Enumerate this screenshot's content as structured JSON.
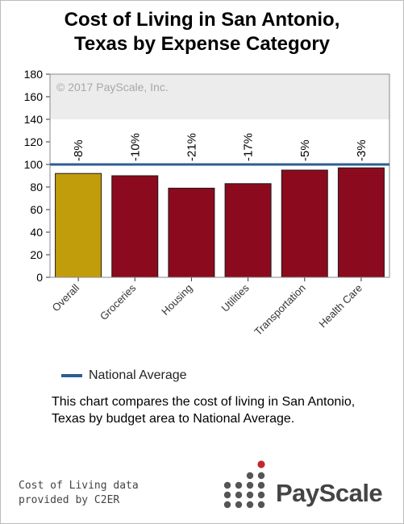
{
  "title_line1": "Cost of Living in San Antonio,",
  "title_line2": "Texas by Expense Category",
  "watermark": "© 2017 PayScale, Inc.",
  "legend_label": "National Average",
  "description": "This chart compares the cost of living in San Antonio, Texas by budget area to National Average.",
  "credit_line1": "Cost of Living data",
  "credit_line2": "provided by C2ER",
  "brand": "PayScale",
  "colors": {
    "overall_bar": "#c29d0b",
    "category_bar": "#8b0a1e",
    "national_line": "#2e5d93",
    "plot_band": "#ececec",
    "logo_dot": "#555555",
    "logo_accent": "#c0282e"
  },
  "chart_data": {
    "type": "bar",
    "categories": [
      "Overall",
      "Groceries",
      "Housing",
      "Utilities",
      "Transportation",
      "Health Care"
    ],
    "values": [
      92,
      90,
      79,
      83,
      95,
      97
    ],
    "data_labels": [
      "-8%",
      "-10%",
      "-21%",
      "-17%",
      "-5%",
      "-3%"
    ],
    "reference_line": {
      "name": "National Average",
      "value": 100
    },
    "ylim": [
      0,
      180
    ],
    "yticks": [
      0,
      20,
      40,
      60,
      80,
      100,
      120,
      140,
      160,
      180
    ],
    "xlabel": "",
    "ylabel": "",
    "grid": false,
    "legend_position": "bottom-left"
  }
}
